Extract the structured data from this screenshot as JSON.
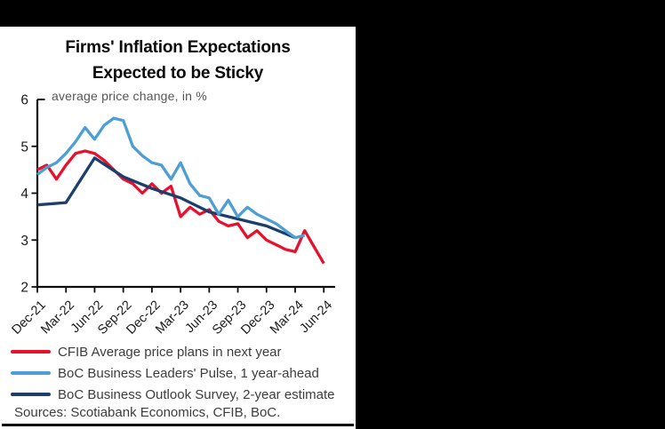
{
  "frame": {
    "background_color": "#000000",
    "panel_color": "#ffffff"
  },
  "title": {
    "line1": "Firms' Inflation Expectations",
    "line2": "Expected to be Sticky"
  },
  "sources": "Sources: Scotiabank Economics, CFIB, BoC.",
  "chart_data": {
    "type": "line",
    "title": "Firms' Inflation Expectations Expected to be Sticky",
    "subtitle": "average price change, in %",
    "ylabel": "",
    "xlabel": "",
    "ylim": [
      2,
      6
    ],
    "yticks": [
      "2",
      "3",
      "4",
      "5",
      "6"
    ],
    "x_tick_labels": [
      "Dec-21",
      "Mar-22",
      "Jun-22",
      "Sep-22",
      "Dec-22",
      "Mar-23",
      "Jun-23",
      "Sep-23",
      "Dec-23",
      "Mar-24",
      "Jun-24"
    ],
    "months_per_tick": 3,
    "grid": false,
    "legend_position": "bottom",
    "axis_color": "#0d0d0d",
    "tick_label_color": "#1a1a1a",
    "series": [
      {
        "name": "CFIB Average price plans in next year",
        "color": "#e8112d",
        "start_month": 0,
        "month_step": 1,
        "z": 0,
        "values": [
          4.5,
          4.6,
          4.3,
          4.6,
          4.85,
          4.9,
          4.85,
          4.7,
          4.5,
          4.3,
          4.2,
          4.0,
          4.2,
          4.0,
          4.15,
          3.5,
          3.7,
          3.55,
          3.65,
          3.4,
          3.3,
          3.35,
          3.05,
          3.2,
          3.0,
          2.9,
          2.8,
          2.75,
          3.2,
          2.85,
          2.5
        ]
      },
      {
        "name": "BoC Business Leaders' Pulse, 1 year-ahead",
        "color": "#4d9fd3",
        "start_month": 0,
        "month_step": 1,
        "z": 2,
        "values": [
          4.4,
          4.55,
          4.65,
          4.85,
          5.1,
          5.4,
          5.15,
          5.45,
          5.6,
          5.55,
          5.0,
          4.8,
          4.65,
          4.6,
          4.3,
          4.65,
          4.2,
          3.95,
          3.9,
          3.55,
          3.85,
          3.5,
          3.7,
          3.55,
          3.45,
          3.35,
          3.2,
          3.05,
          3.1
        ]
      },
      {
        "name": "BoC Business Outlook Survey, 2-year estimate",
        "color": "#1c3e6b",
        "start_month": 0,
        "month_step": 3,
        "z": 1,
        "values": [
          3.75,
          3.8,
          4.75,
          4.35,
          4.1,
          3.9,
          3.6,
          3.45,
          3.3,
          3.05
        ]
      }
    ]
  }
}
